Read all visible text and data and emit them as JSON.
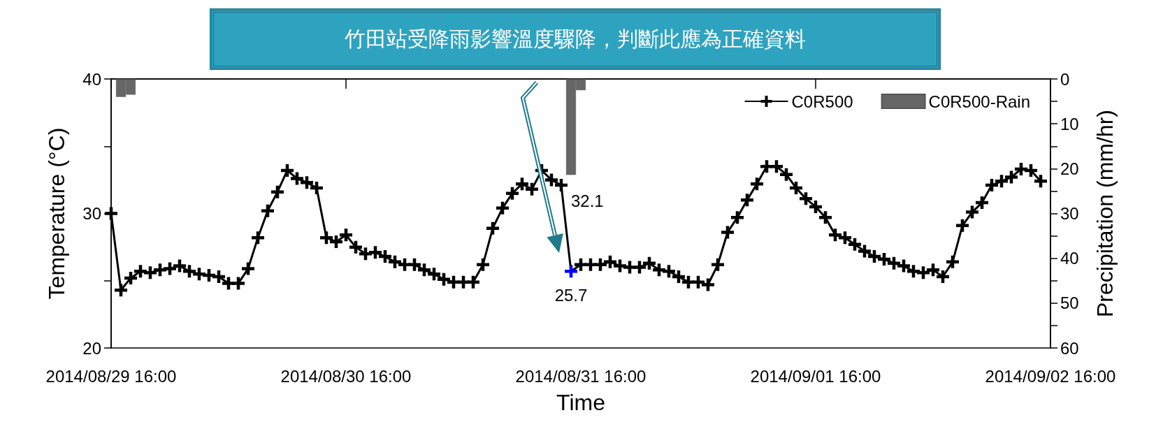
{
  "chart_data": {
    "type": "line",
    "xlabel": "Time",
    "ylabel": "Temperature (°C)",
    "y2label": "Precipitation (mm/hr)",
    "annotations": [
      "竹田站受降雨影響溫度驟降，判斷此應為正確資料"
    ],
    "xlim": [
      "2014-08-29T16:00",
      "2014-09-02T16:00"
    ],
    "xticks": [
      {
        "value": "2014-08-29T16:00",
        "label": "2014/08/29 16:00"
      },
      {
        "value": "2014-08-30T16:00",
        "label": "2014/08/30 16:00"
      },
      {
        "value": "2014-08-31T16:00",
        "label": "2014/08/31 16:00"
      },
      {
        "value": "2014-09-01T16:00",
        "label": "2014/09/01 16:00"
      },
      {
        "value": "2014-09-02T16:00",
        "label": "2014/09/02 16:00"
      }
    ],
    "ylim": [
      20,
      40
    ],
    "yticks": [
      20,
      {
        "value": 25,
        "label": null
      },
      30,
      {
        "value": 35,
        "label": null
      },
      40
    ],
    "y2lim": [
      60,
      0
    ],
    "y2ticks": [
      0,
      {
        "value": 5,
        "label": null
      },
      10,
      {
        "value": 15,
        "label": null
      },
      20,
      {
        "value": 25,
        "label": null
      },
      30,
      {
        "value": 35,
        "label": null
      },
      40,
      {
        "value": 45,
        "label": null
      },
      50,
      {
        "value": 55,
        "label": null
      },
      60
    ],
    "legend": "top right",
    "marker": "cross",
    "series": [
      {
        "name": "C0R500",
        "color": "#000000",
        "x": [
          "2014-08-29T16:00",
          "2014-08-29T17:00",
          "2014-08-29T18:00",
          "2014-08-29T19:00",
          "2014-08-29T20:00",
          "2014-08-29T21:00",
          "2014-08-29T22:00",
          "2014-08-29T23:00",
          "2014-08-30T00:00",
          "2014-08-30T01:00",
          "2014-08-30T02:00",
          "2014-08-30T03:00",
          "2014-08-30T04:00",
          "2014-08-30T05:00",
          "2014-08-30T06:00",
          "2014-08-30T07:00",
          "2014-08-30T08:00",
          "2014-08-30T09:00",
          "2014-08-30T10:00",
          "2014-08-30T11:00",
          "2014-08-30T12:00",
          "2014-08-30T13:00",
          "2014-08-30T14:00",
          "2014-08-30T15:00",
          "2014-08-30T16:00",
          "2014-08-30T17:00",
          "2014-08-30T18:00",
          "2014-08-30T19:00",
          "2014-08-30T20:00",
          "2014-08-30T21:00",
          "2014-08-30T22:00",
          "2014-08-30T23:00",
          "2014-08-31T00:00",
          "2014-08-31T01:00",
          "2014-08-31T02:00",
          "2014-08-31T03:00",
          "2014-08-31T04:00",
          "2014-08-31T05:00",
          "2014-08-31T06:00",
          "2014-08-31T07:00",
          "2014-08-31T08:00",
          "2014-08-31T09:00",
          "2014-08-31T10:00",
          "2014-08-31T11:00",
          "2014-08-31T12:00",
          "2014-08-31T13:00",
          "2014-08-31T14:00",
          "2014-08-31T15:00",
          "2014-08-31T16:00",
          "2014-08-31T17:00",
          "2014-08-31T18:00",
          "2014-08-31T19:00",
          "2014-08-31T20:00",
          "2014-08-31T21:00",
          "2014-08-31T22:00",
          "2014-08-31T23:00",
          "2014-09-01T00:00",
          "2014-09-01T01:00",
          "2014-09-01T02:00",
          "2014-09-01T03:00",
          "2014-09-01T04:00",
          "2014-09-01T05:00",
          "2014-09-01T06:00",
          "2014-09-01T07:00",
          "2014-09-01T08:00",
          "2014-09-01T09:00",
          "2014-09-01T10:00",
          "2014-09-01T11:00",
          "2014-09-01T12:00",
          "2014-09-01T13:00",
          "2014-09-01T14:00",
          "2014-09-01T15:00",
          "2014-09-01T16:00",
          "2014-09-01T17:00",
          "2014-09-01T18:00",
          "2014-09-01T19:00",
          "2014-09-01T20:00",
          "2014-09-01T21:00",
          "2014-09-01T22:00",
          "2014-09-01T23:00",
          "2014-09-02T00:00",
          "2014-09-02T01:00",
          "2014-09-02T02:00",
          "2014-09-02T03:00",
          "2014-09-02T04:00",
          "2014-09-02T05:00",
          "2014-09-02T06:00",
          "2014-09-02T07:00",
          "2014-09-02T08:00",
          "2014-09-02T09:00",
          "2014-09-02T10:00",
          "2014-09-02T11:00",
          "2014-09-02T12:00",
          "2014-09-02T13:00",
          "2014-09-02T14:00",
          "2014-09-02T15:00"
        ],
        "values": [
          30.0,
          24.3,
          25.2,
          25.7,
          25.6,
          25.8,
          25.9,
          26.1,
          25.7,
          25.5,
          25.4,
          25.3,
          24.8,
          24.8,
          25.9,
          28.2,
          30.2,
          31.6,
          33.2,
          32.6,
          32.3,
          31.9,
          28.2,
          27.9,
          28.4,
          27.5,
          27.0,
          27.1,
          26.8,
          26.4,
          26.2,
          26.2,
          25.8,
          25.5,
          25.1,
          24.9,
          24.9,
          24.9,
          26.2,
          28.9,
          30.4,
          31.5,
          32.2,
          31.8,
          33.2,
          32.5,
          32.1,
          25.7,
          26.2,
          26.2,
          26.2,
          26.4,
          26.1,
          26.0,
          26.0,
          26.3,
          25.8,
          25.7,
          25.3,
          24.9,
          24.9,
          24.7,
          26.2,
          28.6,
          29.7,
          31.0,
          32.2,
          33.5,
          33.5,
          32.9,
          31.9,
          31.1,
          30.5,
          29.7,
          28.4,
          28.2,
          27.7,
          27.2,
          26.8,
          26.6,
          26.3,
          26.1,
          25.7,
          25.6,
          25.8,
          25.3,
          26.4,
          29.1,
          30.1,
          30.8,
          32.1,
          32.4,
          32.7,
          33.3,
          33.2,
          32.4
        ],
        "colors": [
          "#000000",
          "#000000",
          "#000000",
          "#000000",
          "#000000",
          "#000000",
          "#000000",
          "#000000",
          "#000000",
          "#000000",
          "#000000",
          "#000000",
          "#000000",
          "#000000",
          "#000000",
          "#000000",
          "#000000",
          "#000000",
          "#000000",
          "#000000",
          "#000000",
          "#000000",
          "#000000",
          "#000000",
          "#000000",
          "#000000",
          "#000000",
          "#000000",
          "#000000",
          "#000000",
          "#000000",
          "#000000",
          "#000000",
          "#000000",
          "#000000",
          "#000000",
          "#000000",
          "#000000",
          "#000000",
          "#000000",
          "#000000",
          "#000000",
          "#000000",
          "#000000",
          "#000000",
          "#000000",
          "#000000",
          "#0000ff",
          "#000000",
          "#000000",
          "#000000",
          "#000000",
          "#000000",
          "#000000",
          "#000000",
          "#000000",
          "#000000",
          "#000000",
          "#000000",
          "#000000",
          "#000000",
          "#000000",
          "#000000",
          "#000000",
          "#000000",
          "#000000",
          "#000000",
          "#000000",
          "#000000",
          "#000000",
          "#000000",
          "#000000",
          "#000000",
          "#000000",
          "#000000",
          "#000000",
          "#000000",
          "#000000",
          "#000000",
          "#000000",
          "#000000",
          "#000000",
          "#000000",
          "#000000",
          "#000000",
          "#000000",
          "#000000",
          "#000000",
          "#000000",
          "#000000",
          "#000000",
          "#000000",
          "#000000",
          "#000000",
          "#000000",
          "#000000"
        ],
        "value_labels": [
          null,
          null,
          null,
          null,
          null,
          null,
          null,
          null,
          null,
          null,
          null,
          null,
          null,
          null,
          null,
          null,
          null,
          null,
          null,
          null,
          null,
          null,
          null,
          null,
          null,
          null,
          null,
          null,
          null,
          null,
          null,
          null,
          null,
          null,
          null,
          null,
          null,
          null,
          null,
          null,
          null,
          null,
          null,
          null,
          null,
          null,
          "32.1",
          "25.7",
          null,
          null,
          null,
          null,
          null,
          null,
          null,
          null,
          null,
          null,
          null,
          null,
          null,
          null,
          null,
          null,
          null,
          null,
          null,
          null,
          null,
          null,
          null,
          null,
          null,
          null,
          null,
          null,
          null,
          null,
          null,
          null,
          null,
          null,
          null,
          null,
          null,
          null,
          null,
          null,
          null,
          null,
          null,
          null,
          null,
          null,
          null,
          null
        ]
      },
      {
        "name": "C0R500-Rain",
        "type": "bar",
        "axis": "y2",
        "color": "#666666",
        "x": [
          "2014-08-29T17:00",
          "2014-08-29T18:00",
          "2014-08-31T15:00",
          "2014-08-31T16:00"
        ],
        "values": [
          4,
          3.5,
          21.4,
          2.5
        ]
      }
    ]
  }
}
